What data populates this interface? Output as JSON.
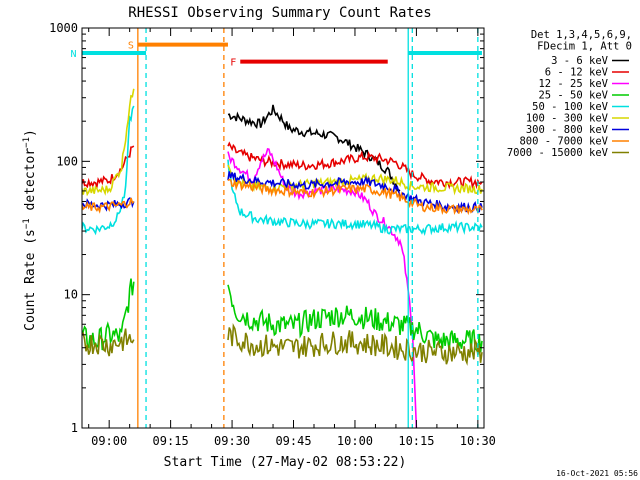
{
  "chart_data": {
    "type": "line",
    "title": "RHESSI Observing Summary Count Rates",
    "xlabel": "Start Time (27-May-02 08:53:22)",
    "ylabel": "Count Rate (s⁻¹ detector⁻¹)",
    "yscale": "log",
    "ylim": [
      1,
      1000
    ],
    "xlim": [
      "08:53:22",
      "10:31:30"
    ],
    "x_ticks": [
      "09:00",
      "09:15",
      "09:30",
      "09:45",
      "10:00",
      "10:15",
      "10:30"
    ],
    "y_ticks": [
      "1",
      "10",
      "100",
      "1000"
    ],
    "legend_header": [
      "Det 1,3,4,5,6,9,",
      "FDecim 1, Att 0"
    ],
    "legend_position": "right",
    "footer": "16-Oct-2021 05:56",
    "series": [
      {
        "name": "3 - 6 keV",
        "color": "#000000",
        "segments": [
          {
            "x": [
              "09:29",
              "09:33",
              "09:37",
              "09:40",
              "09:42",
              "09:44",
              "09:48",
              "09:52",
              "09:56",
              "10:00",
              "10:04",
              "10:08",
              "10:11"
            ],
            "y": [
              225,
              205,
              190,
              245,
              210,
              175,
              165,
              160,
              150,
              128,
              108,
              85,
              60
            ]
          }
        ]
      },
      {
        "name": "6 - 12 keV",
        "color": "#e60000",
        "segments": [
          {
            "x": [
              "08:53",
              "08:57",
              "09:00",
              "09:03",
              "09:05",
              "09:06"
            ],
            "y": [
              70,
              70,
              72,
              88,
              115,
              130
            ]
          },
          {
            "x": [
              "09:29",
              "09:31",
              "09:34",
              "09:38",
              "09:43",
              "09:48",
              "09:53",
              "09:58",
              "10:02",
              "10:06",
              "10:10",
              "10:14",
              "10:18",
              "10:22",
              "10:31"
            ],
            "y": [
              130,
              118,
              108,
              100,
              95,
              93,
              96,
              102,
              108,
              105,
              98,
              80,
              72,
              70,
              70
            ]
          }
        ]
      },
      {
        "name": "12 - 25 keV",
        "color": "#ff00ff",
        "segments": [
          {
            "x": [
              "09:29",
              "09:32",
              "09:35",
              "09:37",
              "09:39",
              "09:41",
              "09:43",
              "09:46",
              "09:50",
              "09:55",
              "10:00",
              "10:03",
              "10:05",
              "10:08",
              "10:11",
              "10:12",
              "10:14",
              "10:15"
            ],
            "y": [
              110,
              88,
              72,
              100,
              120,
              90,
              65,
              57,
              60,
              62,
              60,
              50,
              40,
              33,
              25,
              18,
              6,
              1
            ]
          }
        ]
      },
      {
        "name": "25 - 50 keV",
        "color": "#00cc00",
        "segments": [
          {
            "x": [
              "08:53",
              "08:57",
              "09:00",
              "09:03",
              "09:05",
              "09:06"
            ],
            "y": [
              4.8,
              4.5,
              5.0,
              4.8,
              10,
              12.5
            ]
          },
          {
            "x": [
              "09:29",
              "09:31",
              "09:35",
              "09:40",
              "09:45",
              "09:50",
              "09:55",
              "10:00",
              "10:05",
              "10:10",
              "10:15",
              "10:20",
              "10:25",
              "10:31"
            ],
            "y": [
              12,
              7.5,
              6.5,
              6.0,
              5.8,
              6.5,
              7.0,
              7.0,
              6.5,
              6.0,
              5.5,
              4.5,
              4.5,
              4.5
            ]
          }
        ]
      },
      {
        "name": "50 - 100 keV",
        "color": "#00e0e0",
        "segments": [
          {
            "x": [
              "08:53",
              "08:57",
              "09:00",
              "09:02",
              "09:04",
              "09:05",
              "09:06"
            ],
            "y": [
              32,
              31,
              33,
              38,
              60,
              200,
              260
            ]
          },
          {
            "x": [
              "09:29",
              "09:30",
              "09:32",
              "09:36",
              "09:42",
              "09:48",
              "09:54",
              "10:00",
              "10:04",
              "10:08",
              "10:12",
              "10:16",
              "10:22",
              "10:31"
            ],
            "y": [
              100,
              60,
              42,
              37,
              35,
              34,
              34,
              34,
              33,
              31,
              31,
              31,
              32,
              32
            ]
          }
        ]
      },
      {
        "name": "100 - 300 keV",
        "color": "#d7d700",
        "segments": [
          {
            "x": [
              "08:53",
              "08:57",
              "09:00",
              "09:03",
              "09:05",
              "09:06"
            ],
            "y": [
              60,
              60,
              62,
              90,
              260,
              350
            ]
          },
          {
            "x": [
              "09:29",
              "09:31",
              "09:35",
              "09:40",
              "09:45",
              "09:50",
              "09:55",
              "10:00",
              "10:05",
              "10:10",
              "10:14",
              "10:18",
              "10:24",
              "10:31"
            ],
            "y": [
              100,
              70,
              65,
              64,
              66,
              68,
              70,
              72,
              75,
              72,
              65,
              64,
              63,
              62
            ]
          }
        ]
      },
      {
        "name": "300 - 800 keV",
        "color": "#0000dd",
        "segments": [
          {
            "x": [
              "08:53",
              "08:57",
              "09:00",
              "09:03",
              "09:05",
              "09:06"
            ],
            "y": [
              48,
              47,
              47,
              48,
              50,
              50
            ]
          },
          {
            "x": [
              "09:29",
              "09:33",
              "09:38",
              "09:43",
              "09:48",
              "09:53",
              "09:58",
              "10:03",
              "10:08",
              "10:12",
              "10:16",
              "10:22",
              "10:31"
            ],
            "y": [
              78,
              74,
              70,
              68,
              66,
              68,
              70,
              70,
              65,
              56,
              50,
              46,
              45
            ]
          }
        ]
      },
      {
        "name": "800 - 7000 keV",
        "color": "#ff8000",
        "segments": [
          {
            "x": [
              "08:53",
              "08:57",
              "09:00",
              "09:03",
              "09:05",
              "09:06"
            ],
            "y": [
              45,
              45,
              46,
              47,
              50,
              50
            ]
          },
          {
            "x": [
              "09:29",
              "09:33",
              "09:38",
              "09:43",
              "09:48",
              "09:53",
              "09:58",
              "10:03",
              "10:08",
              "10:12",
              "10:16",
              "10:22",
              "10:31"
            ],
            "y": [
              70,
              66,
              62,
              60,
              58,
              60,
              62,
              62,
              58,
              52,
              46,
              44,
              43
            ]
          }
        ]
      },
      {
        "name": "7000 - 15000 keV",
        "color": "#808000",
        "segments": [
          {
            "x": [
              "08:53",
              "08:57",
              "09:00",
              "09:03",
              "09:05",
              "09:06"
            ],
            "y": [
              4.2,
              4.4,
              4.2,
              4.5,
              4.6,
              4.6
            ]
          },
          {
            "x": [
              "09:29",
              "09:32",
              "09:36",
              "09:40",
              "09:45",
              "09:50",
              "09:55",
              "10:00",
              "10:05",
              "10:10",
              "10:15",
              "10:20",
              "10:25",
              "10:31"
            ],
            "y": [
              5.0,
              4.6,
              4.2,
              4.1,
              4.0,
              4.2,
              4.4,
              4.4,
              4.2,
              4.0,
              3.8,
              3.7,
              3.7,
              3.7
            ]
          }
        ]
      }
    ],
    "flag_bars": [
      {
        "label": "S",
        "color": "#ff8000",
        "x": [
          "09:07",
          "09:29"
        ],
        "y": 750
      },
      {
        "label": "N",
        "color": "#00e0e0",
        "x": [
          "08:53",
          "09:09"
        ],
        "y": 650
      },
      {
        "label": "F",
        "color": "#e60000",
        "x": [
          "09:32",
          "10:08"
        ],
        "y": 560
      },
      {
        "label": "",
        "color": "#00e0e0",
        "x": [
          "10:13",
          "10:31"
        ],
        "y": 650
      }
    ],
    "vertical_lines": [
      {
        "x": "09:07",
        "color": "#ff8000",
        "style": "solid"
      },
      {
        "x": "09:09",
        "color": "#00e0e0",
        "style": "dashed"
      },
      {
        "x": "09:28",
        "color": "#ff8000",
        "style": "dashed"
      },
      {
        "x": "10:13",
        "color": "#00e0e0",
        "style": "solid"
      },
      {
        "x": "10:14",
        "color": "#00e0e0",
        "style": "dashed"
      },
      {
        "x": "10:30",
        "color": "#00e0e0",
        "style": "dashed"
      }
    ],
    "grid": false
  }
}
